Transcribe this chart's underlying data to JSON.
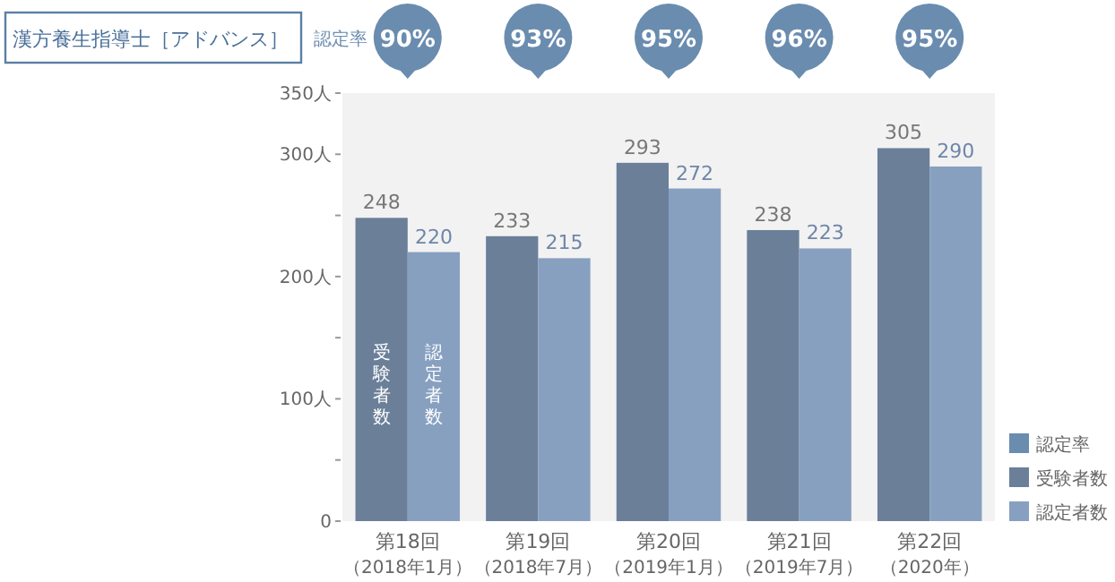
{
  "chart_data": {
    "type": "bar",
    "title": "漢方養生指導士［アドバンス］",
    "categories": [
      "第18回（2018年1月）",
      "第19回（2018年7月）",
      "第20回（2019年1月）",
      "第21回（2019年7月）",
      "第22回（2020年）"
    ],
    "series": [
      {
        "name": "受験者数",
        "color": "#6b7f99",
        "values": [
          248,
          233,
          293,
          238,
          305
        ]
      },
      {
        "name": "認定者数",
        "color": "#87a0c0",
        "values": [
          220,
          215,
          272,
          223,
          290
        ]
      }
    ],
    "ylim": [
      0,
      350
    ],
    "yticks": [
      0,
      {
        "value": 50,
        "label": null
      },
      {
        "value": 100,
        "label": "100人"
      },
      {
        "value": 150,
        "label": null
      },
      {
        "value": 200,
        "label": "200人"
      },
      {
        "value": 250,
        "label": null
      },
      {
        "value": 300,
        "label": "300人"
      },
      {
        "value": 350,
        "label": "350人"
      }
    ],
    "data_labels": true,
    "legend": "bottom right",
    "annotations": [
      "認定率",
      "90%",
      "93%",
      "95%",
      "96%",
      "95%",
      "受験者数",
      "認定者数"
    ]
  }
}
